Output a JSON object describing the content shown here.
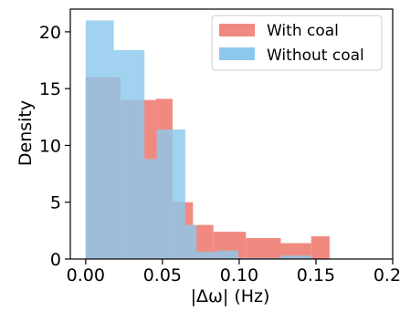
{
  "chart_data": {
    "type": "histogram",
    "xlabel": "|Δω| (Hz)",
    "ylabel": "Density",
    "xlim": [
      -0.01,
      0.2
    ],
    "ylim": [
      0,
      22
    ],
    "xticks": [
      "0.00",
      "0.05",
      "0.10",
      "0.15",
      "0.20"
    ],
    "xtick_values": [
      0,
      0.05,
      0.1,
      0.15,
      0.2
    ],
    "yticks": [
      "0",
      "5",
      "10",
      "15",
      "20"
    ],
    "ytick_values": [
      0,
      5,
      10,
      15,
      20
    ],
    "grid": false,
    "legend_position": "top-right",
    "series": [
      {
        "name": "With coal",
        "color": "#F08A80",
        "bins": [
          0,
          0.0228,
          0.0456,
          0.0566,
          0.0699,
          0.0832,
          0.1044,
          0.1271,
          0.1469,
          0.1589
        ],
        "values": [
          16.0,
          14.0,
          14.1,
          5.0,
          3.0,
          2.4,
          1.85,
          1.4,
          2.0
        ]
      },
      {
        "name": "Without coal",
        "color": "#8CC8EC",
        "bins": [
          0,
          0.0183,
          0.0383,
          0.0463,
          0.0649,
          0.0722,
          0.0857,
          0.0994,
          0.1044,
          0.1271,
          0.1469,
          0.1589
        ],
        "values": [
          21.0,
          18.4,
          8.8,
          11.4,
          3.0,
          0.65,
          0.75,
          0.1,
          0.1,
          0.3,
          0.0
        ]
      }
    ]
  }
}
